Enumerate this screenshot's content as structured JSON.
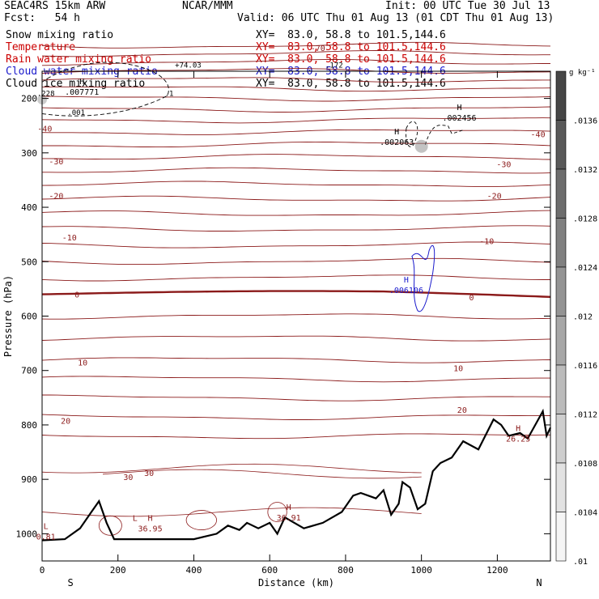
{
  "header": {
    "model": "SEAC4RS 15km ARW",
    "center": "NCAR/MMM",
    "init": "Init: 00 UTC Tue 30 Jul 13",
    "fcst": "Fcst:   54 h",
    "valid": "Valid: 06 UTC Thu 01 Aug 13 (01 CDT Thu 01 Aug 13)"
  },
  "fields": [
    {
      "name": "Snow mixing ratio",
      "color": "#000000",
      "xy": "XY=  83.0, 58.8 to 101.5,144.6"
    },
    {
      "name": "Temperature",
      "color": "#cc0000",
      "xy": "XY=  83.0, 58.8 to 101.5,144.6"
    },
    {
      "name": "Rain water mixing ratio",
      "color": "#cc0000",
      "xy": "XY=  83.0, 58.8 to 101.5,144.6"
    },
    {
      "name": "Cloud water mixing ratio",
      "color": "#1a1acc",
      "xy": "XY=  83.0, 58.8 to 101.5,144.6"
    },
    {
      "name": "Cloud ice mixing ratio",
      "color": "#000000",
      "xy": "XY=  83.0, 58.8 to 101.5,144.6"
    }
  ],
  "chart_data": {
    "type": "line",
    "xlabel": "Distance (km)",
    "ylabel": "Pressure (hPa)",
    "xlim": [
      0,
      1340
    ],
    "ylim": [
      150,
      1050
    ],
    "y_reversed": true,
    "xticks": [
      0,
      200,
      400,
      600,
      800,
      1000,
      1200
    ],
    "yticks": [
      200,
      300,
      400,
      500,
      600,
      700,
      800,
      900,
      1000
    ],
    "x_end_labels": [
      "S",
      "N"
    ],
    "colorbar": {
      "unit": "g kg⁻¹",
      "ticks": [
        ".0136",
        ".0132",
        ".0128",
        ".0124",
        ".012",
        ".0116",
        ".0112",
        ".0108",
        ".0104",
        ".01"
      ]
    },
    "temperature_color": "#8b1a1a",
    "isotherm_labels": [
      {
        "text": "-70",
        "x": 710,
        "p": 107
      },
      {
        "text": "-40",
        "x": -10,
        "p": 255
      },
      {
        "text": "-40",
        "x": 1290,
        "p": 265
      },
      {
        "text": "-30",
        "x": 20,
        "p": 315
      },
      {
        "text": "-30",
        "x": 1200,
        "p": 320
      },
      {
        "text": "-20",
        "x": 20,
        "p": 378
      },
      {
        "text": "-20",
        "x": 1175,
        "p": 378
      },
      {
        "text": "-10",
        "x": 55,
        "p": 455
      },
      {
        "text": "-10",
        "x": 1155,
        "p": 462
      },
      {
        "text": "0",
        "x": 75,
        "p": 560
      },
      {
        "text": "0",
        "x": 1115,
        "p": 565
      },
      {
        "text": "10",
        "x": 90,
        "p": 685
      },
      {
        "text": "10",
        "x": 1080,
        "p": 695
      },
      {
        "text": "20",
        "x": 45,
        "p": 792
      },
      {
        "text": "20",
        "x": 1090,
        "p": 772
      },
      {
        "text": "30",
        "x": 210,
        "p": 895
      },
      {
        "text": "30",
        "x": 265,
        "p": 888
      }
    ],
    "maxima_labels": [
      {
        "mark": "H",
        "value": ".007771",
        "x": 105,
        "p": 183,
        "color": "#000000"
      },
      {
        "mark": "H",
        "value": ".002456",
        "x": 1100,
        "p": 230,
        "color": "#000000"
      },
      {
        "mark": "H",
        "value": ".002063",
        "x": 935,
        "p": 275,
        "color": "#000000"
      },
      {
        "mark": "H",
        "value": ".006106",
        "x": 960,
        "p": 547,
        "color": "#1a1acc"
      },
      {
        "mark": "H",
        "value": "36.95",
        "x": 285,
        "p": 985,
        "color": "#8b1a1a"
      },
      {
        "mark": "H",
        "value": "36.91",
        "x": 650,
        "p": 965,
        "color": "#8b1a1a"
      },
      {
        "mark": "H",
        "value": "26.25",
        "x": 1255,
        "p": 820,
        "color": "#8b1a1a"
      },
      {
        "mark": "L",
        "value": "0.81",
        "x": 10,
        "p": 1000,
        "color": "#8b1a1a"
      },
      {
        "mark": "L",
        "value": "",
        "x": 245,
        "p": 985,
        "color": "#8b1a1a"
      }
    ],
    "contour_value_labels": [
      {
        "text": "+74.03",
        "x": 385,
        "p": 143
      },
      {
        "text": ".001",
        "x": 90,
        "p": 230
      },
      {
        "text": ".1",
        "x": 335,
        "p": 195
      },
      {
        "text": ".228",
        "x": 10,
        "p": 195
      },
      {
        "text": ".172",
        "x": 770,
        "p": 143
      }
    ],
    "terrain": {
      "x": [
        0,
        60,
        100,
        130,
        150,
        170,
        190,
        230,
        300,
        400,
        460,
        490,
        520,
        540,
        570,
        600,
        620,
        640,
        690,
        740,
        790,
        820,
        840,
        860,
        880,
        900,
        920,
        940,
        950,
        970,
        990,
        1010,
        1030,
        1050,
        1080,
        1110,
        1150,
        1190,
        1210,
        1230,
        1260,
        1280,
        1300,
        1320,
        1330,
        1340
      ],
      "p": [
        1012,
        1010,
        990,
        960,
        940,
        980,
        1010,
        1010,
        1010,
        1010,
        1000,
        985,
        993,
        980,
        990,
        980,
        1000,
        970,
        990,
        980,
        960,
        930,
        925,
        930,
        935,
        920,
        965,
        945,
        905,
        915,
        955,
        945,
        885,
        870,
        860,
        830,
        845,
        790,
        800,
        820,
        815,
        825,
        800,
        775,
        820,
        805
      ]
    }
  }
}
